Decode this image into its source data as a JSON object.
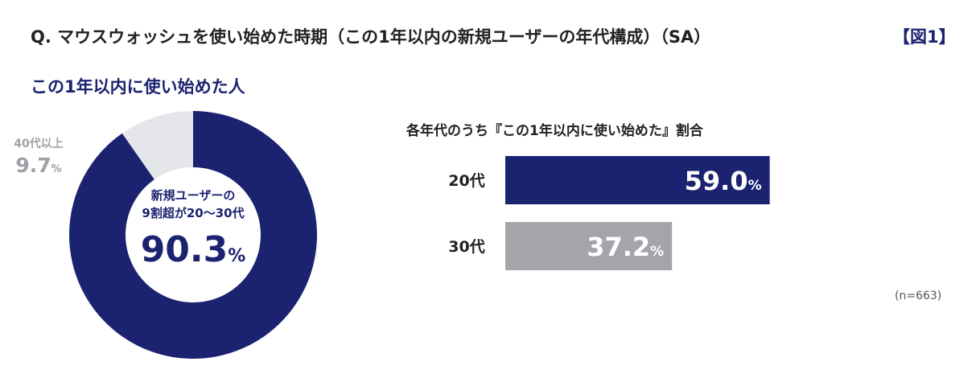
{
  "header": {
    "title": "Q. マウスウォッシュを使い始めた時期（この1年以内の新規ユーザーの年代構成）（SA）",
    "figure_label": "【図1】"
  },
  "donut": {
    "subhead": "この1年以内に使い始めた人",
    "center_line1": "新規ユーザーの",
    "center_line2": "9割超が20～30代",
    "center_value": "90.3",
    "center_unit": "%",
    "outside_label": "40代以上",
    "outside_value": "9.7",
    "outside_unit": "%"
  },
  "bar": {
    "title": "各年代のうち『この1年以内に使い始めた』割合"
  },
  "note": "(n=663)",
  "colors": {
    "navy": "#1b2370",
    "light_gray": "#e4e6ea",
    "bar_gray": "#a3a5aa",
    "label_gray": "#9ea0a6"
  },
  "chart_data": [
    {
      "type": "pie",
      "title": "この1年以内に使い始めた人",
      "categories": [
        "20～30代",
        "40代以上"
      ],
      "values": [
        90.3,
        9.7
      ],
      "colors": [
        "#1b2370",
        "#e4e6ea"
      ],
      "unit": "%"
    },
    {
      "type": "bar",
      "orientation": "horizontal",
      "title": "各年代のうち『この1年以内に使い始めた』割合",
      "categories": [
        "20代",
        "30代"
      ],
      "values": [
        59.0,
        37.2
      ],
      "value_labels": [
        "59.0",
        "37.2"
      ],
      "colors": [
        "#1b2370",
        "#a3a5aa"
      ],
      "unit": "%",
      "xlim": [
        0,
        100
      ]
    }
  ]
}
